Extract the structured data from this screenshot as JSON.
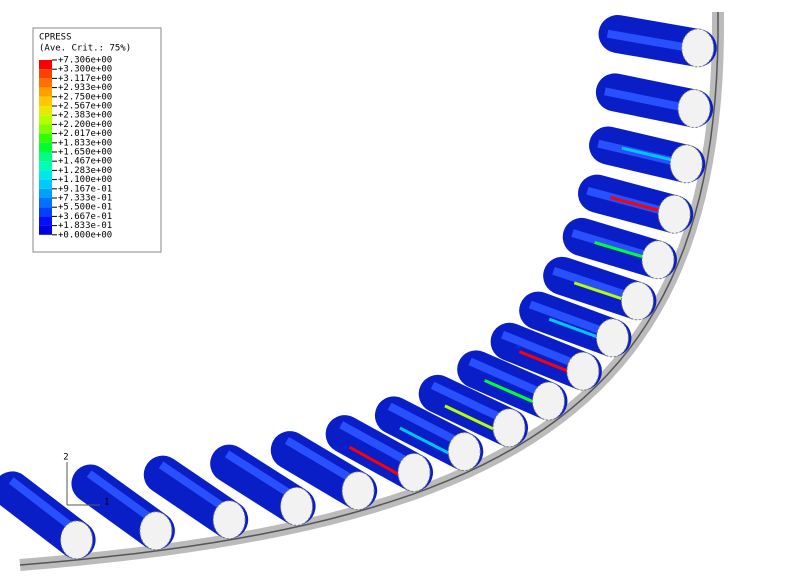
{
  "legend": {
    "title": "CPRESS",
    "subtitle": "(Ave. Crit.: 75%)",
    "labels": [
      "+7.306e+00",
      "+3.300e+00",
      "+3.117e+00",
      "+2.933e+00",
      "+2.750e+00",
      "+2.567e+00",
      "+2.383e+00",
      "+2.200e+00",
      "+2.017e+00",
      "+1.833e+00",
      "+1.650e+00",
      "+1.467e+00",
      "+1.283e+00",
      "+1.100e+00",
      "+9.167e-01",
      "+7.333e-01",
      "+5.500e-01",
      "+3.667e-01",
      "+1.833e-01",
      "+0.000e+00"
    ],
    "colors": [
      "#ff0000",
      "#ff4000",
      "#ff7000",
      "#ffa000",
      "#ffc800",
      "#e8e800",
      "#b4ff00",
      "#80ff00",
      "#30ff00",
      "#00ff30",
      "#00ff80",
      "#00ffb4",
      "#00e8e8",
      "#00c8ff",
      "#00a0ff",
      "#0070ff",
      "#0040ff",
      "#0010ff",
      "#0000e0"
    ]
  },
  "triad": {
    "axis_2": "2",
    "axis_1": "1"
  }
}
